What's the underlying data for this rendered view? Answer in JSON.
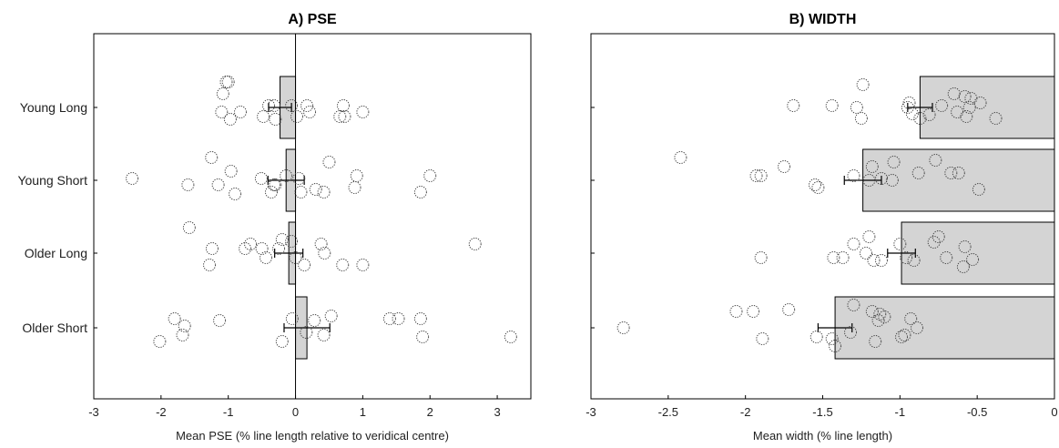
{
  "chart_data": [
    {
      "type": "bar",
      "orientation": "horizontal",
      "title": "A) PSE",
      "xlabel": "Mean PSE (% line length relative to veridical centre)",
      "ylabel": "",
      "xlim": [
        -3,
        3.5
      ],
      "xticks": [
        "-3",
        "-2",
        "-1",
        "0",
        "1",
        "2",
        "3"
      ],
      "xtick_values": [
        -3,
        -2,
        -1,
        0,
        1,
        2,
        3
      ],
      "categories": [
        "Young Long",
        "Young Short",
        "Older Long",
        "Older Short"
      ],
      "values": [
        -0.23,
        -0.14,
        -0.1,
        0.17
      ],
      "error": [
        0.17,
        0.27,
        0.21,
        0.34
      ],
      "reference_line": 0,
      "grid": false,
      "bar_color": "#d4d4d4",
      "points": [
        [
          -1.03,
          -1.0,
          -1.08,
          -0.32,
          -0.4,
          -0.06,
          0.17,
          0.71,
          -1.1,
          -0.82,
          -0.97,
          -0.48,
          -0.3,
          0.02,
          0.21,
          0.66,
          0.73,
          1.0
        ],
        [
          -2.43,
          -1.25,
          -0.96,
          -0.51,
          -0.14,
          0.05,
          0.5,
          0.91,
          2.0,
          -1.6,
          -1.15,
          -0.3,
          -0.36,
          0.3,
          0.42,
          0.88,
          1.86,
          -0.9,
          -0.32,
          0.08
        ],
        [
          -1.58,
          -0.67,
          -0.2,
          -0.06,
          0.38,
          2.67,
          -1.24,
          -0.75,
          -0.5,
          -0.25,
          0.0,
          0.43,
          -1.28,
          -0.44,
          0.13,
          0.7,
          1.0
        ],
        [
          -1.8,
          -1.13,
          -0.05,
          0.28,
          0.53,
          1.4,
          1.53,
          1.86,
          -1.65,
          -1.68,
          0.16,
          0.42,
          1.89,
          3.2,
          -2.02,
          -0.2
        ]
      ],
      "point_rows": [
        [
          -0.28,
          -0.28,
          -0.15,
          -0.02,
          -0.02,
          -0.02,
          -0.02,
          -0.02,
          0.05,
          0.05,
          0.13,
          0.1,
          0.13,
          0.1,
          0.05,
          0.1,
          0.1,
          0.05
        ],
        [
          -0.02,
          -0.25,
          -0.1,
          -0.02,
          -0.05,
          -0.02,
          -0.2,
          -0.05,
          -0.05,
          0.05,
          0.05,
          0.05,
          0.13,
          0.1,
          0.13,
          0.08,
          0.13,
          0.15,
          0.05,
          0.13
        ],
        [
          -0.28,
          -0.1,
          -0.15,
          -0.13,
          -0.1,
          -0.1,
          -0.05,
          -0.05,
          -0.05,
          -0.05,
          0.05,
          0.0,
          0.13,
          0.05,
          0.13,
          0.13,
          0.13
        ],
        [
          -0.1,
          -0.08,
          -0.1,
          -0.08,
          -0.13,
          -0.1,
          -0.1,
          -0.1,
          -0.02,
          0.08,
          0.05,
          0.08,
          0.1,
          0.1,
          0.15,
          0.15
        ]
      ]
    },
    {
      "type": "bar",
      "orientation": "horizontal",
      "title": "B) WIDTH",
      "xlabel": "Mean width (% line length)",
      "ylabel": "",
      "xlim": [
        -3,
        0
      ],
      "xticks": [
        "-3",
        "-2.5",
        "-2",
        "-1.5",
        "-1",
        "-0.5",
        "0"
      ],
      "xtick_values": [
        -3,
        -2.5,
        -2,
        -1.5,
        -1,
        -0.5,
        0
      ],
      "categories": [
        "Young Long",
        "Young Short",
        "Older Long",
        "Older Short"
      ],
      "values": [
        -0.87,
        -1.24,
        -0.99,
        -1.42
      ],
      "error": [
        0.08,
        0.12,
        0.09,
        0.11
      ],
      "grid": false,
      "bar_color": "#d4d4d4",
      "points": [
        [
          -1.24,
          -0.94,
          -0.65,
          -0.58,
          -0.54,
          -0.48,
          -1.69,
          -1.44,
          -1.28,
          -0.95,
          -0.92,
          -0.73,
          -0.63,
          -0.55,
          -0.38,
          -1.25,
          -0.87,
          -0.81,
          -0.57
        ],
        [
          -2.42,
          -1.75,
          -1.04,
          -0.77,
          -1.93,
          -1.9,
          -1.3,
          -1.18,
          -1.12,
          -0.88,
          -0.67,
          -0.62,
          -1.53,
          -1.55,
          -1.2,
          -1.05,
          -0.49
        ],
        [
          -1.2,
          -0.75,
          -1.3,
          -1.0,
          -0.78,
          -0.58,
          -1.9,
          -1.43,
          -1.37,
          -1.22,
          -1.17,
          -1.12,
          -0.96,
          -0.91,
          -0.7,
          -0.53,
          -0.59
        ],
        [
          -1.3,
          -2.06,
          -1.95,
          -1.72,
          -1.18,
          -1.13,
          -1.1,
          -1.14,
          -0.93,
          -2.79,
          -1.54,
          -1.32,
          -1.44,
          -1.16,
          -0.97,
          -0.89,
          -0.99,
          -1.89,
          -1.42
        ]
      ],
      "point_rows": [
        [
          -0.25,
          -0.05,
          -0.15,
          -0.12,
          -0.1,
          -0.05,
          -0.02,
          -0.02,
          0.0,
          0.0,
          0.07,
          -0.02,
          0.05,
          0.0,
          0.12,
          0.12,
          0.12,
          0.08,
          0.1
        ],
        [
          -0.25,
          -0.15,
          -0.2,
          -0.22,
          -0.05,
          -0.05,
          -0.05,
          -0.15,
          -0.02,
          -0.08,
          -0.08,
          -0.08,
          0.08,
          0.05,
          0.0,
          0.0,
          0.1
        ],
        [
          -0.18,
          -0.18,
          -0.1,
          -0.1,
          -0.12,
          -0.07,
          0.05,
          0.05,
          0.05,
          0.0,
          0.08,
          0.08,
          0.05,
          0.08,
          0.05,
          0.07,
          0.15
        ],
        [
          -0.25,
          -0.18,
          -0.18,
          -0.2,
          -0.18,
          -0.15,
          -0.12,
          -0.08,
          -0.1,
          0.0,
          0.1,
          0.05,
          0.12,
          0.15,
          0.08,
          0.0,
          0.1,
          0.12,
          0.2
        ]
      ]
    }
  ]
}
